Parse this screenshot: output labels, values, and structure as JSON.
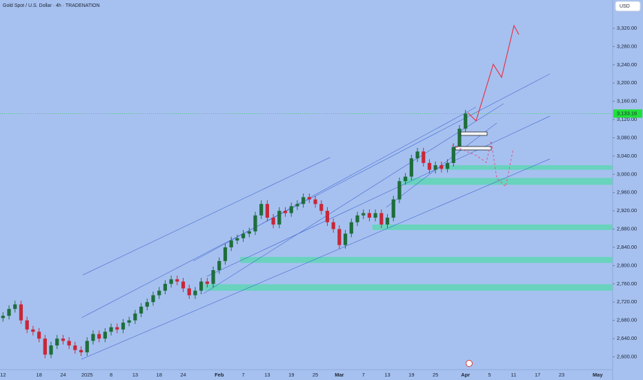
{
  "chart_data": {
    "type": "candlestick",
    "title": "Gold Spot / U.S. Dollar · 4h · TRADENATION",
    "currency": "USD",
    "up_color": "#1e6e3c",
    "down_color": "#c62838",
    "background": "#a6c1ef",
    "zone_color": "#5ed6b4",
    "ylim": [
      2572,
      3382
    ],
    "yticks": [
      {
        "value": 2600,
        "label": "2,600.00"
      },
      {
        "value": 2640,
        "label": "2,640.00"
      },
      {
        "value": 2680,
        "label": "2,680.00"
      },
      {
        "value": 2720,
        "label": "2,720.00"
      },
      {
        "value": 2760,
        "label": "2,760.00"
      },
      {
        "value": 2800,
        "label": "2,800.00"
      },
      {
        "value": 2840,
        "label": "2,840.00"
      },
      {
        "value": 2880,
        "label": "2,880.00"
      },
      {
        "value": 2920,
        "label": "2,920.00"
      },
      {
        "value": 2960,
        "label": "2,960.00"
      },
      {
        "value": 3000,
        "label": "3,000.00"
      },
      {
        "value": 3040,
        "label": "3,040.00"
      },
      {
        "value": 3080,
        "label": "3,080.00"
      },
      {
        "value": 3120,
        "label": "3,120.00"
      },
      {
        "value": 3160,
        "label": "3,160.00"
      },
      {
        "value": 3200,
        "label": "3,200.00"
      },
      {
        "value": 3240,
        "label": "3,240.00"
      },
      {
        "value": 3280,
        "label": "3,280.00"
      },
      {
        "value": 3320,
        "label": "3,320.00"
      }
    ],
    "last_price": {
      "value": 3133.16,
      "label": "3,133.16"
    },
    "categories": [
      "12",
      null,
      null,
      null,
      null,
      null,
      "18",
      null,
      null,
      null,
      "24",
      null,
      null,
      null,
      "2025",
      null,
      null,
      null,
      "8",
      null,
      null,
      null,
      "13",
      null,
      null,
      null,
      "18",
      null,
      null,
      null,
      "24",
      null,
      null,
      null,
      null,
      null,
      "Feb",
      null,
      null,
      null,
      "7",
      null,
      null,
      null,
      "13",
      null,
      null,
      null,
      "19",
      null,
      null,
      null,
      "25",
      null,
      null,
      null,
      "Mar",
      null,
      null,
      null,
      "7",
      null,
      null,
      null,
      "13",
      null,
      null,
      null,
      "19",
      null,
      null,
      null,
      "25",
      null,
      null,
      null,
      null,
      "Apr",
      null,
      null,
      null,
      "5",
      null,
      null,
      null,
      "11",
      null,
      null,
      null,
      "17",
      null,
      null,
      null,
      "23",
      null,
      null,
      null,
      null,
      null,
      "May",
      null,
      null
    ],
    "open": [
      2685,
      2690,
      2705,
      2715,
      2680,
      2660,
      2655,
      2640,
      2605,
      2625,
      2640,
      2635,
      2625,
      2615,
      2610,
      2635,
      2650,
      2640,
      2655,
      2665,
      2660,
      2675,
      2680,
      2695,
      2710,
      2720,
      2735,
      2745,
      2760,
      2770,
      2765,
      2750,
      2735,
      2745,
      2765,
      2760,
      2790,
      2810,
      2840,
      2855,
      2860,
      2870,
      2875,
      2910,
      2935,
      2905,
      2890,
      2920,
      2915,
      2930,
      2935,
      2950,
      2945,
      2935,
      2920,
      2895,
      2880,
      2845,
      2870,
      2895,
      2910,
      2915,
      2905,
      2915,
      2890,
      2905,
      2945,
      2985,
      2995,
      3035,
      3050,
      3025,
      3010,
      3020,
      3012,
      3025,
      3060,
      3100,
      null,
      null,
      null,
      null,
      null,
      null,
      null,
      null,
      null,
      null,
      null,
      null,
      null,
      null,
      null,
      null,
      null,
      null,
      null,
      null,
      null,
      null,
      null,
      null
    ],
    "high": [
      2698,
      2713,
      2723,
      2723,
      2688,
      2668,
      2663,
      2648,
      2633,
      2648,
      2648,
      2643,
      2633,
      2623,
      2643,
      2658,
      2658,
      2663,
      2673,
      2673,
      2683,
      2688,
      2703,
      2718,
      2728,
      2743,
      2753,
      2768,
      2778,
      2778,
      2773,
      2758,
      2753,
      2773,
      2773,
      2798,
      2818,
      2848,
      2863,
      2868,
      2878,
      2883,
      2918,
      2943,
      2943,
      2913,
      2928,
      2928,
      2938,
      2943,
      2958,
      2958,
      2953,
      2943,
      2928,
      2903,
      2888,
      2878,
      2903,
      2918,
      2923,
      2923,
      2923,
      2923,
      2913,
      2953,
      2993,
      3003,
      3043,
      3058,
      3058,
      3033,
      3028,
      3028,
      3033,
      3068,
      3108,
      3141,
      null,
      null,
      null,
      null,
      null,
      null,
      null,
      null,
      null,
      null,
      null,
      null,
      null,
      null,
      null,
      null,
      null,
      null,
      null,
      null,
      null,
      null,
      null,
      null
    ],
    "low": [
      2677,
      2682,
      2697,
      2672,
      2652,
      2647,
      2632,
      2597,
      2597,
      2617,
      2627,
      2617,
      2607,
      2602,
      2602,
      2627,
      2632,
      2632,
      2647,
      2652,
      2652,
      2667,
      2672,
      2687,
      2702,
      2712,
      2727,
      2737,
      2752,
      2757,
      2742,
      2727,
      2727,
      2737,
      2752,
      2752,
      2782,
      2802,
      2832,
      2847,
      2852,
      2862,
      2867,
      2902,
      2897,
      2882,
      2882,
      2907,
      2907,
      2922,
      2927,
      2937,
      2927,
      2912,
      2887,
      2872,
      2837,
      2837,
      2862,
      2887,
      2902,
      2897,
      2897,
      2882,
      2882,
      2897,
      2937,
      2977,
      2987,
      3027,
      3017,
      3002,
      3002,
      3004,
      3004,
      3017,
      3052,
      3092,
      null,
      null,
      null,
      null,
      null,
      null,
      null,
      null,
      null,
      null,
      null,
      null,
      null,
      null,
      null,
      null,
      null,
      null,
      null,
      null,
      null,
      null,
      null,
      null
    ],
    "close": [
      2690,
      2705,
      2715,
      2680,
      2660,
      2655,
      2640,
      2605,
      2625,
      2640,
      2635,
      2625,
      2615,
      2610,
      2635,
      2650,
      2640,
      2655,
      2665,
      2660,
      2675,
      2680,
      2695,
      2710,
      2720,
      2735,
      2745,
      2760,
      2770,
      2765,
      2750,
      2735,
      2745,
      2765,
      2760,
      2790,
      2810,
      2840,
      2855,
      2860,
      2870,
      2875,
      2910,
      2935,
      2905,
      2890,
      2920,
      2915,
      2930,
      2935,
      2950,
      2945,
      2935,
      2920,
      2895,
      2880,
      2845,
      2870,
      2895,
      2910,
      2915,
      2905,
      2915,
      2890,
      2905,
      2945,
      2985,
      2995,
      3035,
      3050,
      3025,
      3010,
      3020,
      3012,
      3025,
      3060,
      3100,
      3133.16,
      null,
      null,
      null,
      null,
      null,
      null,
      null,
      null,
      null,
      null,
      null,
      null,
      null,
      null,
      null,
      null,
      null,
      null,
      null,
      null,
      null,
      null,
      null,
      null
    ],
    "zones": [
      {
        "low": 3010,
        "high": 3020,
        "start": 74
      },
      {
        "low": 2977,
        "high": 2992,
        "start": 67
      },
      {
        "low": 2878,
        "high": 2890,
        "start": 62
      },
      {
        "low": 2806,
        "high": 2819,
        "start": 40
      },
      {
        "low": 2745,
        "high": 2759,
        "start": 34
      }
    ]
  }
}
